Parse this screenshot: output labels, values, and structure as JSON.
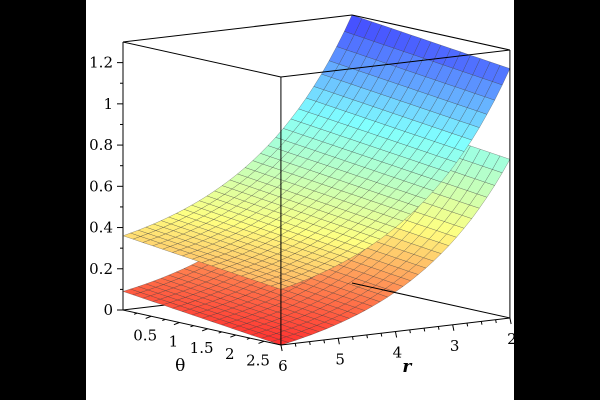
{
  "chart_data": {
    "type": "surface3d",
    "title": "",
    "axes": {
      "z": {
        "ticks": [
          0,
          0.2,
          0.4,
          0.6,
          0.8,
          1,
          1.2
        ],
        "tick_labels": [
          "0",
          "0.2",
          "0.4",
          "0.6",
          "0.8",
          "1",
          "1.2"
        ],
        "range": [
          0,
          1.3
        ]
      },
      "theta": {
        "label": "θ",
        "ticks": [
          0.5,
          1,
          1.5,
          2,
          2.5
        ],
        "tick_labels": [
          "0.5",
          "1",
          "1.5",
          "2",
          "2.5"
        ],
        "range": [
          0,
          2.8
        ]
      },
      "r": {
        "label": "r",
        "ticks": [
          6,
          5,
          4,
          3,
          2
        ],
        "tick_labels": [
          "6",
          "5",
          "4",
          "3",
          "2"
        ],
        "range": [
          2,
          6
        ]
      }
    },
    "series": [
      {
        "surface": "upper",
        "corners": [
          {
            "r": 6,
            "theta": 0,
            "z": 0.36
          },
          {
            "r": 6,
            "theta": 2.8,
            "z": 0.27
          },
          {
            "r": 2,
            "theta": 0,
            "z": 1.3
          },
          {
            "r": 2,
            "theta": 2.8,
            "z": 1.21
          }
        ]
      },
      {
        "surface": "lower",
        "corners": [
          {
            "r": 6,
            "theta": 0,
            "z": 0.09
          },
          {
            "r": 6,
            "theta": 2.8,
            "z": 0.0
          },
          {
            "r": 2,
            "theta": 0,
            "z": 0.86
          },
          {
            "r": 2,
            "theta": 2.8,
            "z": 0.77
          }
        ]
      }
    ],
    "grid": false,
    "legend": "none",
    "colormap": [
      "#ff3030",
      "#ffff80",
      "#80ffff",
      "#4040ff"
    ]
  }
}
